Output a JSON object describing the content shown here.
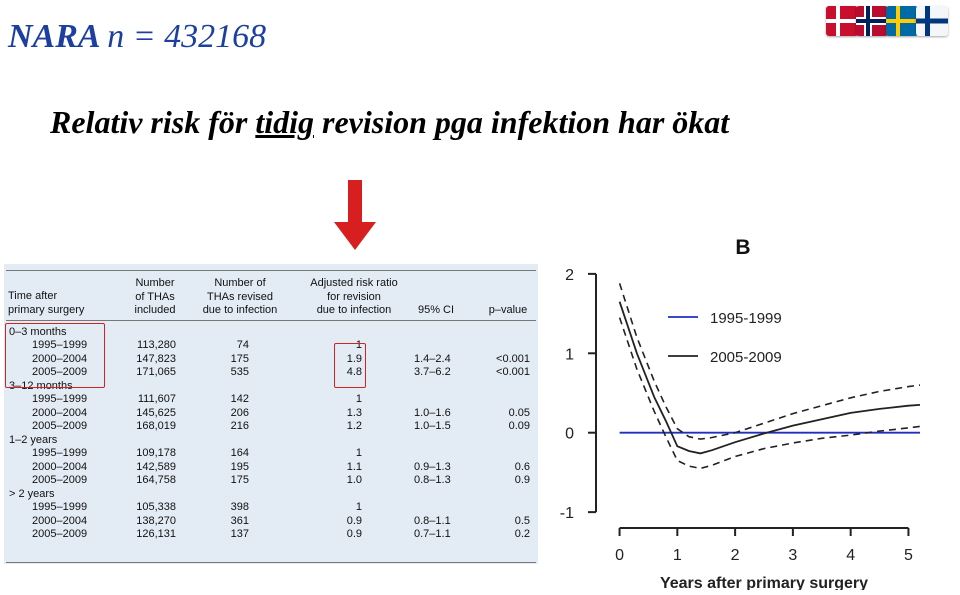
{
  "slide": {
    "title_main": "NARA",
    "title_n": "n = 432168",
    "subtitle_pre": "Relativ risk för ",
    "subtitle_underlined": "tidig",
    "subtitle_post": " revision pga infektion har ökat",
    "arrow_icon": "down-arrow-icon",
    "arrow_color": "#d71f1f",
    "flags": [
      {
        "name": "denmark-flag-icon",
        "colors": [
          "#c8102e",
          "#ffffff"
        ]
      },
      {
        "name": "norway-flag-icon",
        "colors": [
          "#ba0c2f",
          "#ffffff",
          "#00205b"
        ]
      },
      {
        "name": "sweden-flag-icon",
        "colors": [
          "#006aa7",
          "#fecc00"
        ]
      },
      {
        "name": "finland-flag-icon",
        "colors": [
          "#ffffff",
          "#003580"
        ]
      }
    ]
  },
  "table": {
    "headers": {
      "time": [
        "Time after",
        "primary surgery"
      ],
      "number": [
        "Number",
        "of THAs",
        "included"
      ],
      "revised": [
        "Number of",
        "THAs revised",
        "due to infection"
      ],
      "ratio": [
        "Adjusted risk ratio",
        "for revision",
        "due to infection"
      ],
      "ci": [
        "95% CI"
      ],
      "p": [
        "p–value"
      ]
    },
    "groups": [
      {
        "label": "0–3 months",
        "rows": [
          {
            "period": "1995–1999",
            "n": "113,280",
            "revised": "74",
            "ratio": "1",
            "ci": "",
            "p": ""
          },
          {
            "period": "2000–2004",
            "n": "147,823",
            "revised": "175",
            "ratio": "1.9",
            "ci": "1.4–2.4",
            "p": "<0.001"
          },
          {
            "period": "2005–2009",
            "n": "171,065",
            "revised": "535",
            "ratio": "4.8",
            "ci": "3.7–6.2",
            "p": "<0.001"
          }
        ]
      },
      {
        "label": "3–12 months",
        "rows": [
          {
            "period": "1995–1999",
            "n": "111,607",
            "revised": "142",
            "ratio": "1",
            "ci": "",
            "p": ""
          },
          {
            "period": "2000–2004",
            "n": "145,625",
            "revised": "206",
            "ratio": "1.3",
            "ci": "1.0–1.6",
            "p": "0.05"
          },
          {
            "period": "2005–2009",
            "n": "168,019",
            "revised": "216",
            "ratio": "1.2",
            "ci": "1.0–1.5",
            "p": "0.09"
          }
        ]
      },
      {
        "label": "1–2 years",
        "rows": [
          {
            "period": "1995–1999",
            "n": "109,178",
            "revised": "164",
            "ratio": "1",
            "ci": "",
            "p": ""
          },
          {
            "period": "2000–2004",
            "n": "142,589",
            "revised": "195",
            "ratio": "1.1",
            "ci": "0.9–1.3",
            "p": "0.6"
          },
          {
            "period": "2005–2009",
            "n": "164,758",
            "revised": "175",
            "ratio": "1.0",
            "ci": "0.8–1.3",
            "p": "0.9"
          }
        ]
      },
      {
        "label": "> 2 years",
        "rows": [
          {
            "period": "1995–1999",
            "n": "105,338",
            "revised": "398",
            "ratio": "1",
            "ci": "",
            "p": ""
          },
          {
            "period": "2000–2004",
            "n": "138,270",
            "revised": "361",
            "ratio": "0.9",
            "ci": "0.8–1.1",
            "p": "0.5"
          },
          {
            "period": "2005–2009",
            "n": "126,131",
            "revised": "137",
            "ratio": "0.9",
            "ci": "0.7–1.1",
            "p": "0.2"
          }
        ]
      }
    ],
    "highlight_color": "#d22222"
  },
  "chart_data": {
    "type": "line",
    "panel_label": "B",
    "xlabel": "Years after primary surgery",
    "ylabel": "",
    "xlim": [
      -0.2,
      5.2
    ],
    "ylim": [
      -1.2,
      2.2
    ],
    "xticks": [
      0,
      1,
      2,
      3,
      4,
      5
    ],
    "yticks": [
      -1,
      0,
      1,
      2
    ],
    "grid": false,
    "legend_position": "upper-right",
    "series": [
      {
        "name": "1995-1999",
        "color": "#1f2fbf",
        "style": "solid",
        "x": [
          0,
          5.2
        ],
        "y": [
          0,
          0
        ]
      },
      {
        "name": "2005-2009",
        "color": "#222222",
        "style": "solid",
        "x": [
          0,
          0.3,
          0.6,
          0.8,
          1.0,
          1.2,
          1.4,
          1.6,
          2.0,
          2.5,
          3.0,
          3.5,
          4.0,
          4.5,
          5.0,
          5.2
        ],
        "y": [
          1.65,
          1.0,
          0.45,
          0.15,
          -0.17,
          -0.23,
          -0.26,
          -0.22,
          -0.12,
          -0.01,
          0.09,
          0.17,
          0.25,
          0.3,
          0.34,
          0.35
        ]
      },
      {
        "name": "",
        "color": "#222222",
        "style": "dashed",
        "x": [
          0,
          0.3,
          0.6,
          0.8,
          1.0,
          1.2,
          1.4,
          1.6,
          2.0,
          2.5,
          3.0,
          3.5,
          4.0,
          4.5,
          5.0,
          5.2
        ],
        "y": [
          1.88,
          1.2,
          0.65,
          0.33,
          0.05,
          -0.05,
          -0.08,
          -0.06,
          0.0,
          0.12,
          0.24,
          0.34,
          0.44,
          0.52,
          0.58,
          0.6
        ]
      },
      {
        "name": "",
        "color": "#222222",
        "style": "dashed",
        "x": [
          0,
          0.3,
          0.6,
          0.8,
          1.0,
          1.2,
          1.4,
          1.6,
          2.0,
          2.5,
          3.0,
          3.5,
          4.0,
          4.5,
          5.0,
          5.2
        ],
        "y": [
          1.45,
          0.8,
          0.27,
          -0.05,
          -0.35,
          -0.42,
          -0.45,
          -0.41,
          -0.3,
          -0.2,
          -0.13,
          -0.07,
          -0.03,
          0.02,
          0.06,
          0.08
        ]
      }
    ]
  }
}
